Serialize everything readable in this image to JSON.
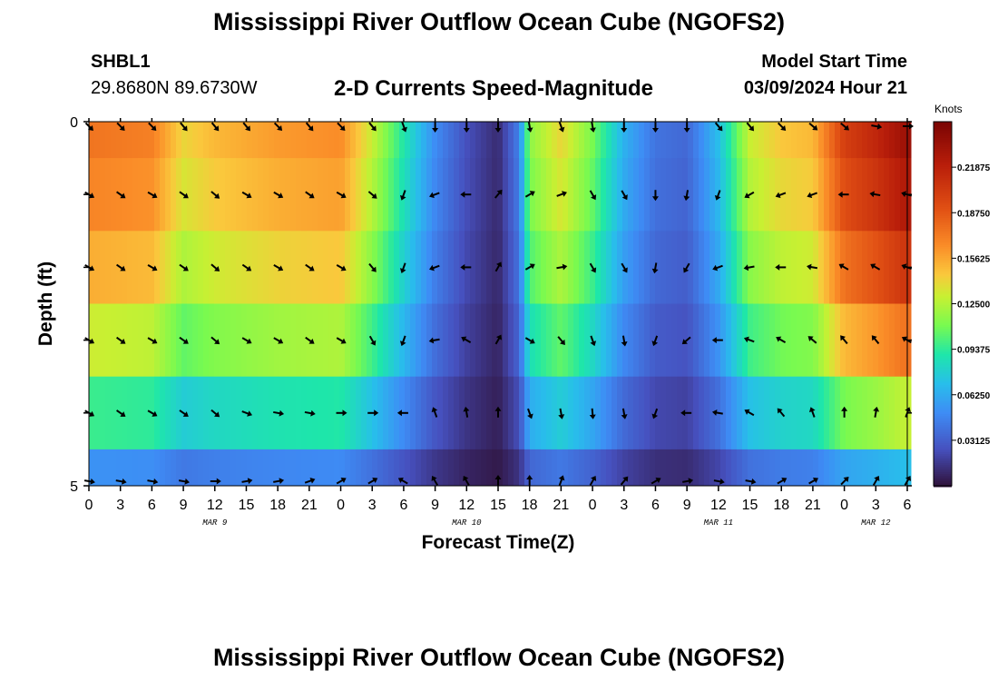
{
  "header": {
    "title": "Mississippi River Outflow Ocean Cube (NGOFS2)",
    "station_id": "SHBL1",
    "coords": "29.8680N  89.6730W",
    "subtitle": "2-D Currents Speed-Magnitude",
    "start_label": "Model Start Time",
    "start_value": "03/09/2024 Hour 21"
  },
  "footer": {
    "title": "Mississippi River Outflow Ocean Cube (NGOFS2)"
  },
  "chart_data": {
    "type": "heatmap",
    "title": "2-D Currents Speed-Magnitude",
    "xlabel": "Forecast Time(Z)",
    "ylabel": "Depth (ft)",
    "x_tick_labels": [
      "0",
      "3",
      "6",
      "9",
      "12",
      "15",
      "18",
      "21",
      "0",
      "3",
      "6",
      "9",
      "12",
      "15",
      "18",
      "21",
      "0",
      "3",
      "6",
      "9",
      "12",
      "15",
      "18",
      "21",
      "0",
      "3",
      "6"
    ],
    "x_hours_range": [
      0,
      78
    ],
    "date_labels": [
      {
        "label": "MAR 9",
        "hour": 12
      },
      {
        "label": "MAR 10",
        "hour": 36
      },
      {
        "label": "MAR 11",
        "hour": 60
      },
      {
        "label": "MAR 12",
        "hour": 75
      }
    ],
    "y_tick_labels": [
      "0",
      "5"
    ],
    "ylim": [
      0,
      5
    ],
    "colorbar": {
      "unit": "Knots",
      "min": 0.0,
      "max": 0.25,
      "tick_labels": [
        "0.21875",
        "0.18750",
        "0.15625",
        "0.12500",
        "0.09375",
        "0.06250",
        "0.03125"
      ],
      "tick_values": [
        0.21875,
        0.1875,
        0.15625,
        0.125,
        0.09375,
        0.0625,
        0.03125
      ]
    },
    "depths": [
      0,
      1,
      2,
      3,
      4,
      5
    ],
    "speed_profile": [
      {
        "hour": 0,
        "surface": 0.175
      },
      {
        "hour": 6,
        "surface": 0.17
      },
      {
        "hour": 9,
        "surface": 0.14
      },
      {
        "hour": 12,
        "surface": 0.15
      },
      {
        "hour": 18,
        "surface": 0.16
      },
      {
        "hour": 24,
        "surface": 0.165
      },
      {
        "hour": 27,
        "surface": 0.13
      },
      {
        "hour": 30,
        "surface": 0.09
      },
      {
        "hour": 33,
        "surface": 0.05
      },
      {
        "hour": 36,
        "surface": 0.025
      },
      {
        "hour": 39,
        "surface": 0.01
      },
      {
        "hour": 41,
        "surface": 0.045
      },
      {
        "hour": 42,
        "surface": 0.115
      },
      {
        "hour": 45,
        "surface": 0.14
      },
      {
        "hour": 48,
        "surface": 0.11
      },
      {
        "hour": 51,
        "surface": 0.065
      },
      {
        "hour": 54,
        "surface": 0.04
      },
      {
        "hour": 57,
        "surface": 0.035
      },
      {
        "hour": 60,
        "surface": 0.07
      },
      {
        "hour": 63,
        "surface": 0.13
      },
      {
        "hour": 66,
        "surface": 0.145
      },
      {
        "hour": 69,
        "surface": 0.15
      },
      {
        "hour": 72,
        "surface": 0.2
      },
      {
        "hour": 75,
        "surface": 0.215
      },
      {
        "hour": 78,
        "surface": 0.235
      }
    ],
    "depth_factors": [
      1.0,
      0.96,
      0.88,
      0.75,
      0.55,
      0.3
    ],
    "arrow_hours": [
      0,
      3,
      6,
      9,
      12,
      15,
      18,
      21,
      24,
      27,
      30,
      33,
      36,
      39,
      42,
      45,
      48,
      51,
      54,
      57,
      60,
      63,
      66,
      69,
      72,
      75,
      78
    ],
    "arrow_directions_deg": [
      [
        135,
        135,
        135,
        140,
        140,
        140,
        135,
        140,
        135,
        140,
        160,
        180,
        180,
        180,
        170,
        160,
        170,
        180,
        180,
        180,
        140,
        140,
        135,
        130,
        130,
        100,
        90
      ],
      [
        120,
        125,
        120,
        125,
        130,
        120,
        120,
        125,
        120,
        130,
        200,
        250,
        270,
        40,
        60,
        70,
        150,
        150,
        180,
        190,
        200,
        240,
        250,
        250,
        270,
        280,
        285
      ],
      [
        120,
        125,
        120,
        125,
        130,
        125,
        120,
        125,
        120,
        140,
        200,
        250,
        270,
        30,
        60,
        80,
        150,
        150,
        190,
        210,
        250,
        260,
        270,
        280,
        300,
        300,
        290
      ],
      [
        120,
        125,
        120,
        125,
        130,
        120,
        120,
        125,
        120,
        150,
        200,
        260,
        300,
        30,
        120,
        140,
        160,
        170,
        200,
        230,
        270,
        290,
        300,
        310,
        320,
        320,
        300
      ],
      [
        120,
        125,
        120,
        125,
        130,
        110,
        100,
        100,
        90,
        90,
        270,
        340,
        350,
        0,
        160,
        170,
        175,
        170,
        200,
        270,
        280,
        300,
        320,
        340,
        360,
        10,
        20
      ],
      [
        100,
        100,
        100,
        100,
        90,
        80,
        80,
        70,
        60,
        60,
        300,
        330,
        330,
        0,
        0,
        20,
        30,
        40,
        60,
        80,
        100,
        100,
        60,
        60,
        45,
        30,
        30
      ]
    ]
  }
}
